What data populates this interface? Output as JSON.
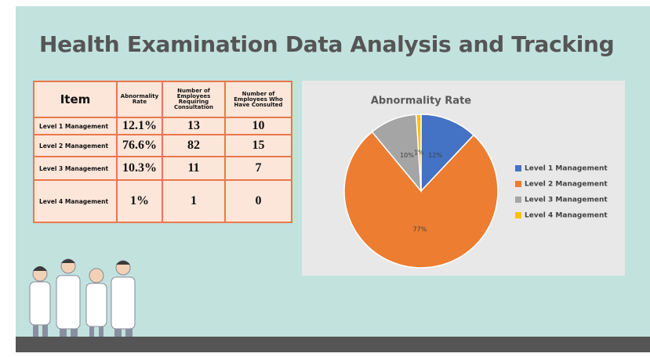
{
  "title": "Health Examination Data Analysis and Tracking",
  "table": {
    "header": [
      "Item",
      "Abnormality Rate",
      "Number of Employees Requiring Consultation",
      "Number of Employees Who Have Consulted"
    ],
    "rows": [
      [
        "Level 1 Management",
        "12.1%",
        13,
        10
      ],
      [
        "Level 2 Management",
        "76.6%",
        82,
        15
      ],
      [
        "Level 3 Management",
        "10.3%",
        11,
        7
      ],
      [
        "Level 4 Management",
        "1%",
        1,
        0
      ]
    ]
  },
  "chart_data": {
    "type": "pie",
    "title": "Abnormality Rate",
    "categories": [
      "Level 1 Management",
      "Level 2 Management",
      "Level 3 Management",
      "Level 4 Management"
    ],
    "values": [
      12,
      77,
      10,
      1
    ],
    "value_labels": [
      "12%",
      "77%",
      "10%",
      "1%"
    ],
    "colors": [
      "#4472c4",
      "#ed7d31",
      "#a5a5a5",
      "#ffc000"
    ],
    "legend": "right"
  }
}
